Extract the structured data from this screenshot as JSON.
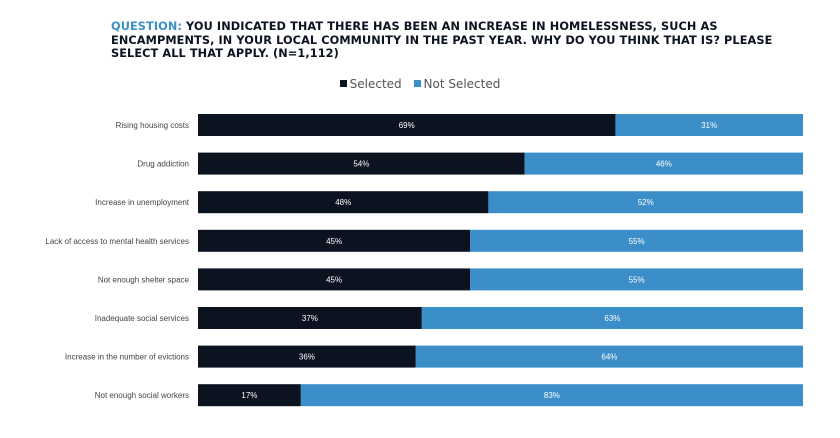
{
  "title": {
    "prefix": "QUESTION:",
    "text": " YOU INDICATED THAT THERE HAS BEEN AN INCREASE IN HOMELESSNESS, SUCH AS ENCAMPMENTS, IN YOUR LOCAL COMMUNITY IN THE PAST YEAR. WHY DO YOU THINK THAT IS? PLEASE SELECT ALL THAT APPLY. (N=1,112)"
  },
  "colors": {
    "selected": "#0b1220",
    "not_selected": "#3b8ec8",
    "accent": "#3b8ec8"
  },
  "chart_data": {
    "type": "bar",
    "orientation": "horizontal",
    "stacked": true,
    "categories": [
      "Rising housing costs",
      "Drug addiction",
      "Increase in unemployment",
      "Lack of access to mental health services",
      "Not enough shelter space",
      "Inadequate social services",
      "Increase in the number of evictions",
      "Not enough social workers"
    ],
    "series": [
      {
        "name": "Selected",
        "values": [
          69,
          54,
          48,
          45,
          45,
          37,
          36,
          17
        ],
        "labels": [
          "69%",
          "54%",
          "48%",
          "45%",
          "45%",
          "37%",
          "36%",
          "17%"
        ]
      },
      {
        "name": "Not Selected",
        "values": [
          31,
          46,
          52,
          55,
          55,
          63,
          64,
          83
        ],
        "labels": [
          "31%",
          "46%",
          "52%",
          "55%",
          "55%",
          "63%",
          "64%",
          "83%"
        ]
      }
    ],
    "xlim": [
      0,
      100
    ],
    "legend": "top-center",
    "grid": false
  }
}
